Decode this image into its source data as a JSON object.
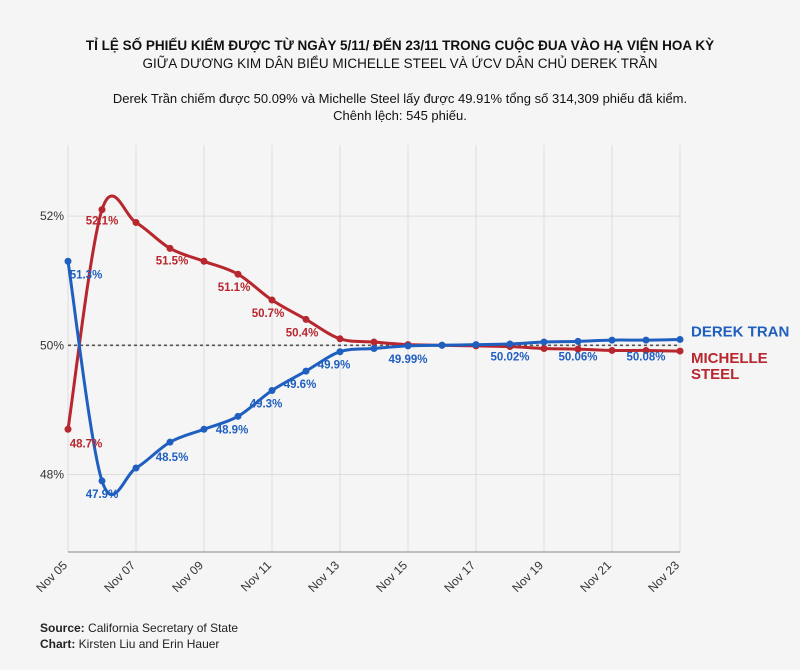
{
  "header": {
    "title_line1": "TỈ LỆ SỐ PHIẾU KIỂM ĐƯỢC TỪ NGÀY 5/11/ ĐẾN 23/11 TRONG CUỘC ĐUA VÀO HẠ VIỆN HOA KỲ",
    "title_line2": "GIỮA DƯƠNG KIM DÂN BIỂU MICHELLE STEEL VÀ ỨCV DÂN CHỦ DEREK TRẦN",
    "subtitle_line1": "Derek Trần chiếm được 50.09% và Michelle Steel lấy được 49.91% tổng số 314,309 phiếu đã kiểm.",
    "subtitle_line2": "Chênh lệch: 545 phiếu."
  },
  "footer": {
    "source_label": "Source:",
    "source_value": " California Secretary of State",
    "chart_label": "Chart:",
    "chart_value": " Kirsten Liu and Erin Hauer"
  },
  "colors": {
    "derek": "#1f5fbf",
    "michelle": "#b8262e",
    "grid": "#dddddd",
    "ref": "#555555"
  },
  "chart_data": {
    "type": "line",
    "x": [
      "Nov 05",
      "Nov 06",
      "Nov 07",
      "Nov 08",
      "Nov 09",
      "Nov 10",
      "Nov 11",
      "Nov 12",
      "Nov 13",
      "Nov 14",
      "Nov 15",
      "Nov 16",
      "Nov 17",
      "Nov 18",
      "Nov 19",
      "Nov 20",
      "Nov 21",
      "Nov 22",
      "Nov 23"
    ],
    "x_tick_labels": [
      "Nov 05",
      "Nov 07",
      "Nov 09",
      "Nov 11",
      "Nov 13",
      "Nov 15",
      "Nov 17",
      "Nov 19",
      "Nov 21",
      "Nov 23"
    ],
    "y_ticks": [
      48,
      50,
      52
    ],
    "y_tick_labels": [
      "48%",
      "50%",
      "52%"
    ],
    "ylim": [
      46.8,
      53.1
    ],
    "reference_line": 50,
    "grid": true,
    "series": [
      {
        "name": "DEREK TRAN",
        "color": "#1f5fbf",
        "values": [
          51.3,
          47.9,
          48.1,
          48.5,
          48.7,
          48.9,
          49.3,
          49.6,
          49.9,
          49.95,
          49.99,
          50.0,
          50.01,
          50.02,
          50.05,
          50.06,
          50.08,
          50.08,
          50.09
        ],
        "data_labels": [
          {
            "i": 0,
            "text": "51.3%"
          },
          {
            "i": 1,
            "text": "47.9%"
          },
          {
            "i": 3,
            "text": "48.5%"
          },
          {
            "i": 5,
            "text": "48.9%"
          },
          {
            "i": 6,
            "text": "49.3%"
          },
          {
            "i": 7,
            "text": "49.6%"
          },
          {
            "i": 8,
            "text": "49.9%"
          },
          {
            "i": 10,
            "text": "49.99%"
          }
        ]
      },
      {
        "name": "MICHELLE STEEL",
        "color": "#b8262e",
        "values": [
          48.7,
          52.1,
          51.9,
          51.5,
          51.3,
          51.1,
          50.7,
          50.4,
          50.1,
          50.05,
          50.01,
          50.0,
          49.99,
          49.98,
          49.95,
          49.94,
          49.92,
          49.92,
          49.91
        ],
        "data_labels": [
          {
            "i": 0,
            "text": "48.7%"
          },
          {
            "i": 1,
            "text": "52.1%"
          },
          {
            "i": 3,
            "text": "51.5%"
          },
          {
            "i": 5,
            "text": "51.1%"
          },
          {
            "i": 6,
            "text": "50.7%"
          },
          {
            "i": 7,
            "text": "50.4%"
          }
        ]
      }
    ],
    "extra_labels": [
      {
        "i": 13,
        "text": "50.02%",
        "color": "#1f5fbf"
      },
      {
        "i": 15,
        "text": "50.06%",
        "color": "#1f5fbf"
      },
      {
        "i": 17,
        "text": "50.08%",
        "color": "#1f5fbf"
      }
    ],
    "end_labels": {
      "derek": "DEREK TRAN",
      "michelle_line1": "MICHELLE",
      "michelle_line2": "STEEL"
    }
  }
}
